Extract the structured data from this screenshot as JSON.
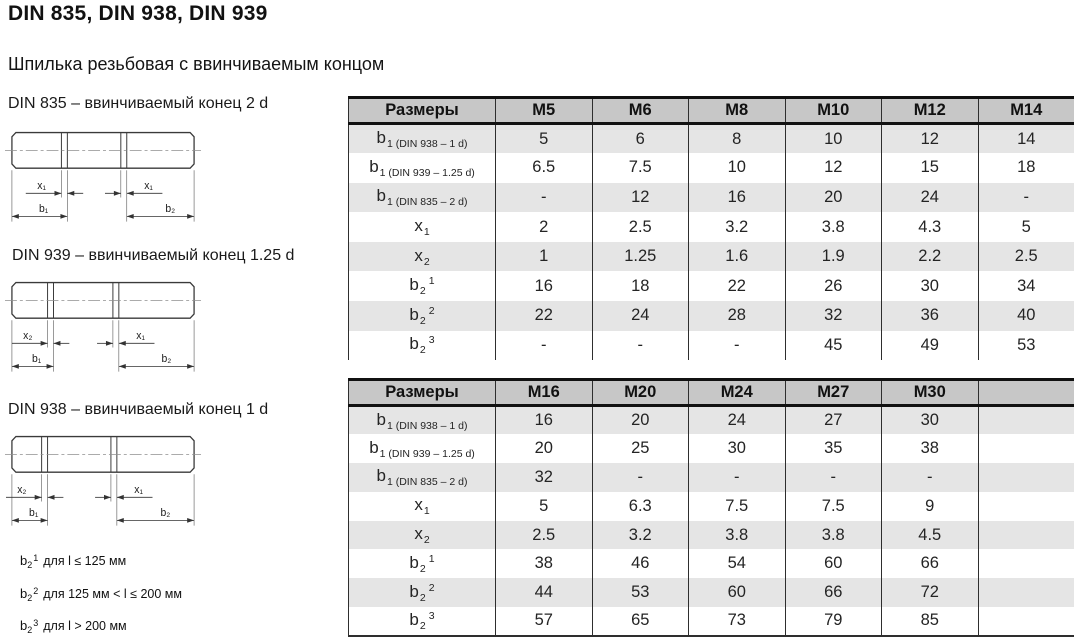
{
  "page": {
    "title": "DIN 835, DIN 938, DIN 939",
    "subtitle": "Шпилька резьбовая с ввинчиваемым концом"
  },
  "drawings": [
    {
      "label": "DIN 835 – ввинчиваемый конец 2 d",
      "x_left": "x₁",
      "x_right": "x₁",
      "b_left": "b₁",
      "b_right": "b₂"
    },
    {
      "label": "DIN 939 – ввинчиваемый конец 1.25 d",
      "x_left": "x₂",
      "x_right": "x₁",
      "b_left": "b₁",
      "b_right": "b₂"
    },
    {
      "label": "DIN 938 – ввинчиваемый конец 1 d",
      "x_left": "x₂",
      "x_right": "x₁",
      "b_left": "b₁",
      "b_right": "b₂"
    }
  ],
  "tables": [
    {
      "header": [
        "Размеры",
        "M5",
        "M6",
        "M8",
        "M10",
        "M12",
        "M14"
      ],
      "rows": [
        {
          "label": {
            "base": "b",
            "sub": "1 (DIN 938 – 1 d)",
            "sup": ""
          },
          "values": [
            "5",
            "6",
            "8",
            "10",
            "12",
            "14"
          ]
        },
        {
          "label": {
            "base": "b",
            "sub": "1 (DIN 939 – 1.25 d)",
            "sup": ""
          },
          "values": [
            "6.5",
            "7.5",
            "10",
            "12",
            "15",
            "18"
          ]
        },
        {
          "label": {
            "base": "b",
            "sub": "1 (DIN 835 – 2 d)",
            "sup": ""
          },
          "values": [
            "-",
            "12",
            "16",
            "20",
            "24",
            "-"
          ]
        },
        {
          "label": {
            "base": "x",
            "sub": "1",
            "sup": ""
          },
          "values": [
            "2",
            "2.5",
            "3.2",
            "3.8",
            "4.3",
            "5"
          ]
        },
        {
          "label": {
            "base": "x",
            "sub": "2",
            "sup": ""
          },
          "values": [
            "1",
            "1.25",
            "1.6",
            "1.9",
            "2.2",
            "2.5"
          ]
        },
        {
          "label": {
            "base": "b",
            "sub": "2",
            "sup": "1"
          },
          "values": [
            "16",
            "18",
            "22",
            "26",
            "30",
            "34"
          ]
        },
        {
          "label": {
            "base": "b",
            "sub": "2",
            "sup": "2"
          },
          "values": [
            "22",
            "24",
            "28",
            "32",
            "36",
            "40"
          ]
        },
        {
          "label": {
            "base": "b",
            "sub": "2",
            "sup": "3"
          },
          "values": [
            "-",
            "-",
            "-",
            "45",
            "49",
            "53"
          ]
        }
      ]
    },
    {
      "header": [
        "Размеры",
        "M16",
        "M20",
        "M24",
        "M27",
        "M30",
        ""
      ],
      "rows": [
        {
          "label": {
            "base": "b",
            "sub": "1 (DIN 938 – 1 d)",
            "sup": ""
          },
          "values": [
            "16",
            "20",
            "24",
            "27",
            "30",
            ""
          ]
        },
        {
          "label": {
            "base": "b",
            "sub": "1 (DIN 939 – 1.25 d)",
            "sup": ""
          },
          "values": [
            "20",
            "25",
            "30",
            "35",
            "38",
            ""
          ]
        },
        {
          "label": {
            "base": "b",
            "sub": "1 (DIN 835 – 2 d)",
            "sup": ""
          },
          "values": [
            "32",
            "-",
            "-",
            "-",
            "-",
            ""
          ]
        },
        {
          "label": {
            "base": "x",
            "sub": "1",
            "sup": ""
          },
          "values": [
            "5",
            "6.3",
            "7.5",
            "7.5",
            "9",
            ""
          ]
        },
        {
          "label": {
            "base": "x",
            "sub": "2",
            "sup": ""
          },
          "values": [
            "2.5",
            "3.2",
            "3.8",
            "3.8",
            "4.5",
            ""
          ]
        },
        {
          "label": {
            "base": "b",
            "sub": "2",
            "sup": "1"
          },
          "values": [
            "38",
            "46",
            "54",
            "60",
            "66",
            ""
          ]
        },
        {
          "label": {
            "base": "b",
            "sub": "2",
            "sup": "2"
          },
          "values": [
            "44",
            "53",
            "60",
            "66",
            "72",
            ""
          ]
        },
        {
          "label": {
            "base": "b",
            "sub": "2",
            "sup": "3"
          },
          "values": [
            "57",
            "65",
            "73",
            "79",
            "85",
            ""
          ]
        }
      ]
    }
  ],
  "footnotes": [
    {
      "base": "b",
      "sub": "2",
      "sup": "1",
      "text": "для l ≤ 125 мм"
    },
    {
      "base": "b",
      "sub": "2",
      "sup": "2",
      "text": "для 125 мм < l ≤ 200 мм"
    },
    {
      "base": "b",
      "sub": "2",
      "sup": "3",
      "text": "для l > 200 мм"
    }
  ],
  "colors": {
    "header_bg": "#c7c7c7",
    "row_alt_bg": "#e5e5e5",
    "row_bg": "#ffffff",
    "table_border": "#111111",
    "grid_line": "#2e2e2e"
  }
}
